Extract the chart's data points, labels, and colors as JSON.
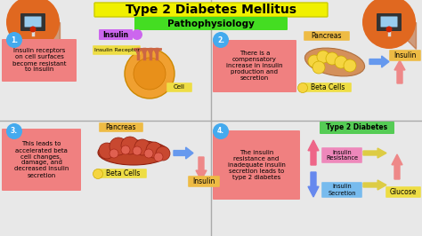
{
  "title": "Type 2 Diabetes Mellitus",
  "subtitle": "Pathophysiology",
  "bg_color": "#d8d8d8",
  "title_box_color": "#f0f000",
  "subtitle_box_color": "#44dd22",
  "sections": [
    {
      "num": "1.",
      "num_bg": "#44aaee",
      "text": "Insulin receptors\non cell surfaces\nbecome resistant\nto insulin",
      "text_bg": "#f08080"
    },
    {
      "num": "2.",
      "num_bg": "#44aaee",
      "text": "There is a\ncompensatory\nincrease in insulin\nproduction and\nsecretion",
      "text_bg": "#f08080"
    },
    {
      "num": "3.",
      "num_bg": "#44aaee",
      "text": "This leads to\naccelerated beta\ncell changes,\ndamage, and\ndecreased insulin\nsecretion",
      "text_bg": "#f08080"
    },
    {
      "num": "4.",
      "num_bg": "#44aaee",
      "text": "The insulin\nresistance and\ninadequate insulin\nsecretion leads to\ntype 2 diabetes",
      "text_bg": "#f08080"
    }
  ],
  "label_colors": {
    "insulin_box": "#cc66ee",
    "insulin_receptor_box": "#eedd44",
    "cell_box": "#eedd44",
    "pancreas_box": "#eebb44",
    "beta_cells_box": "#eedd44",
    "insulin_label_box": "#eebb44",
    "type2_box": "#55cc55",
    "insulin_resistance_box": "#ee88bb",
    "insulin_secretion_box": "#77bbee",
    "glucose_box": "#eedd44"
  },
  "arrow_up_color": "#ee8888",
  "arrow_down_color": "#6688ee",
  "arrow_right_color": "#6699ee",
  "arrow_yellow_color": "#ddcc44",
  "divider_color": "#aaaaaa",
  "orange_circle_color": "#e06820"
}
